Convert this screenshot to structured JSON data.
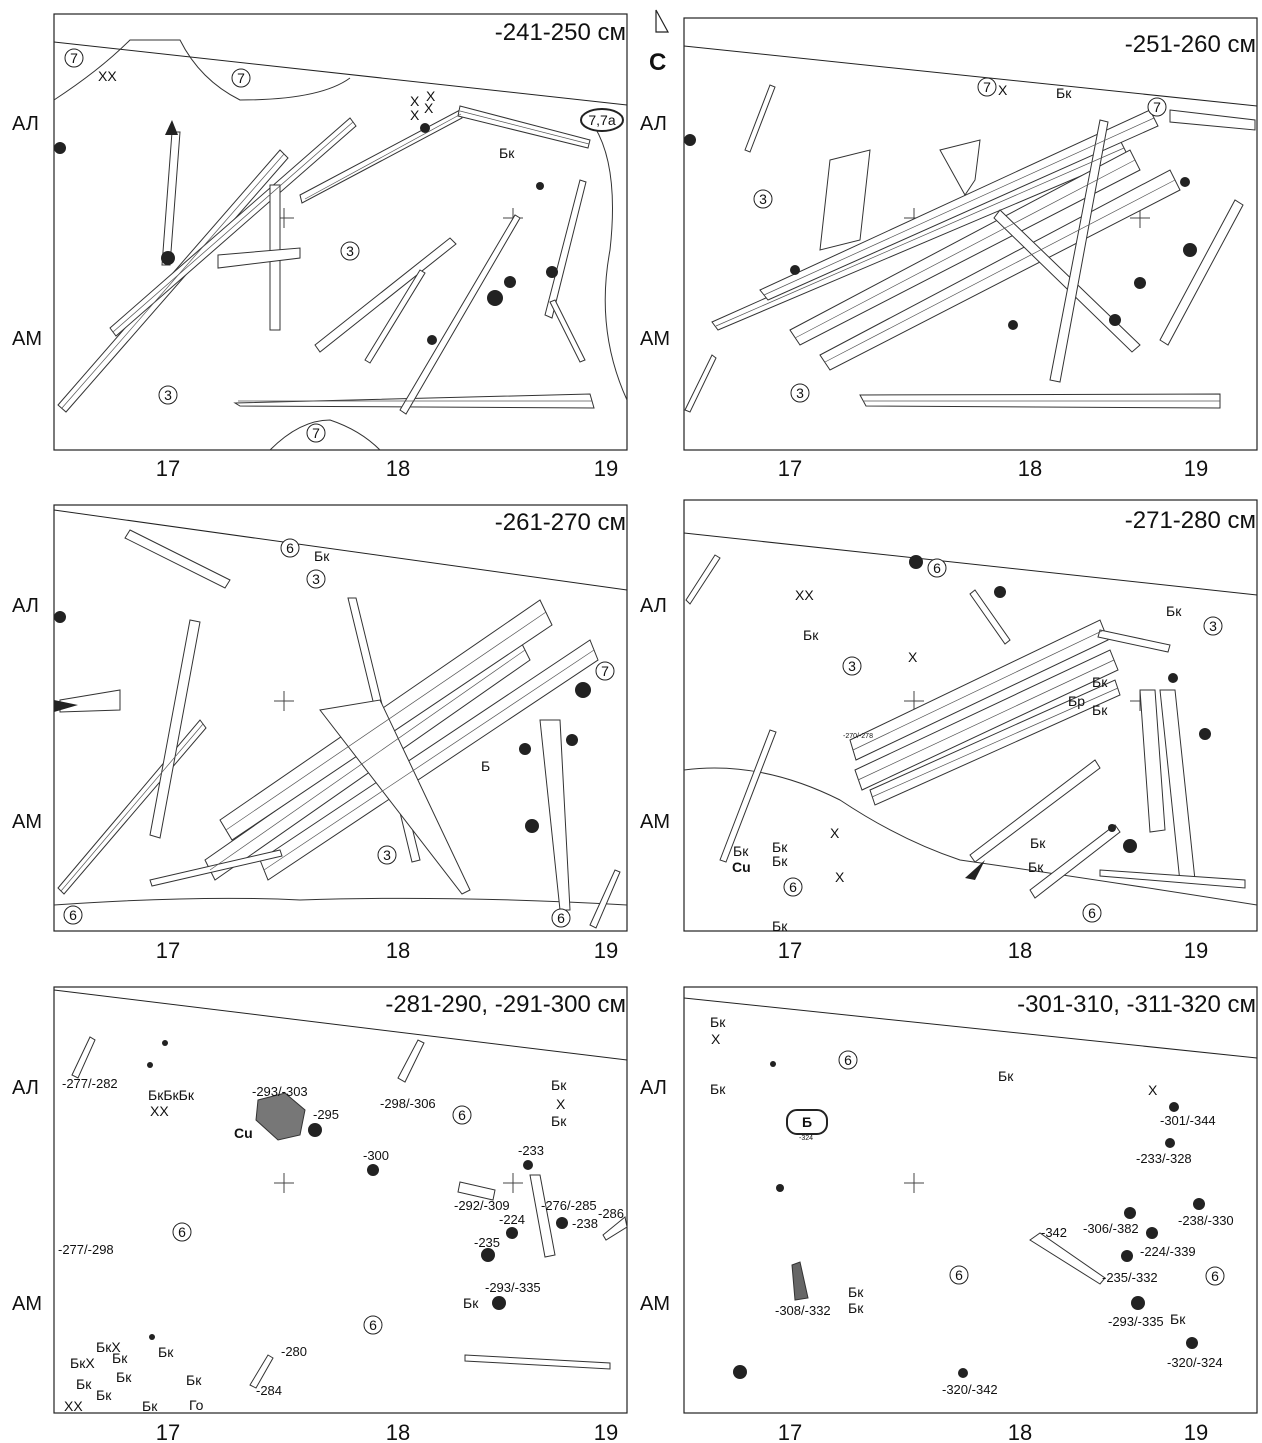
{
  "north": "С",
  "panels": [
    {
      "id": "p1",
      "title": "-241-250 см",
      "row_labels": [
        "АЛ",
        "АМ"
      ],
      "x_ticks": [
        "17",
        "18",
        "19"
      ],
      "layers": [
        "7",
        "7",
        "3",
        "3",
        "7"
      ],
      "oval_label": "7,7а",
      "marks": [
        "ХХ",
        "Х",
        "Х",
        "Х",
        "Х",
        "Бк"
      ]
    },
    {
      "id": "p2",
      "title": "-251-260 см",
      "row_labels": [
        "АЛ",
        "АМ"
      ],
      "x_ticks": [
        "17",
        "18",
        "19"
      ],
      "layers": [
        "7",
        "7",
        "3",
        "3"
      ],
      "marks": [
        "Х",
        "Бк"
      ]
    },
    {
      "id": "p3",
      "title": "-261-270 см",
      "row_labels": [
        "АЛ",
        "АМ"
      ],
      "x_ticks": [
        "17",
        "18",
        "19"
      ],
      "layers": [
        "6",
        "3",
        "7",
        "3",
        "6",
        "6"
      ],
      "marks": [
        "Бк",
        "Б"
      ]
    },
    {
      "id": "p4",
      "title": "-271-280 см",
      "row_labels": [
        "АЛ",
        "АМ"
      ],
      "x_ticks": [
        "17",
        "18",
        "19"
      ],
      "layers": [
        "6",
        "3",
        "3",
        "6",
        "6"
      ],
      "marks": [
        "ХХ",
        "Бк",
        "Х",
        "Бк",
        "Бр",
        "Бк",
        "Бк",
        "Х",
        "Бк",
        "Cu",
        "Бк",
        "Бк",
        "Х",
        "Бк",
        "Бк",
        "Бк"
      ],
      "depth_note": "-270/-278"
    },
    {
      "id": "p5",
      "title": "-281-290, -291-300 см",
      "row_labels": [
        "АЛ",
        "АМ"
      ],
      "x_ticks": [
        "17",
        "18",
        "19"
      ],
      "layers": [
        "6",
        "6",
        "6"
      ],
      "marks": [
        "БкБкБк",
        "ХХ",
        "Cu",
        "Бк",
        "Х",
        "Бк",
        "Бк",
        "БкХ",
        "БкХ",
        "Бк",
        "Бк",
        "Бк",
        "Бк",
        "Бк",
        "Бк",
        "ХХ",
        "Бк",
        "Го"
      ],
      "depths": [
        "-277/-282",
        "-293/-303",
        "-295",
        "-298/-306",
        "-300",
        "-233",
        "-292/-309",
        "-276/-285",
        "-224",
        "-238",
        "-286",
        "-235",
        "-277/-298",
        "-293/-335",
        "-280",
        "-284"
      ]
    },
    {
      "id": "p6",
      "title": "-301-310, -311-320 см",
      "row_labels": [
        "АЛ",
        "АМ"
      ],
      "x_ticks": [
        "17",
        "18",
        "19"
      ],
      "layers": [
        "6",
        "6",
        "6"
      ],
      "marks": [
        "Бк",
        "Х",
        "Бк",
        "Бк",
        "Х",
        "Б",
        "Бк",
        "Бк",
        "Бк"
      ],
      "box_depth": "-324",
      "depths": [
        "-301/-344",
        "-233/-328",
        "-306/-382",
        "-238/-330",
        "-224/-339",
        "-342",
        "-235/-332",
        "-308/-332",
        "-293/-335",
        "-320/-324",
        "-320/-342"
      ]
    }
  ]
}
